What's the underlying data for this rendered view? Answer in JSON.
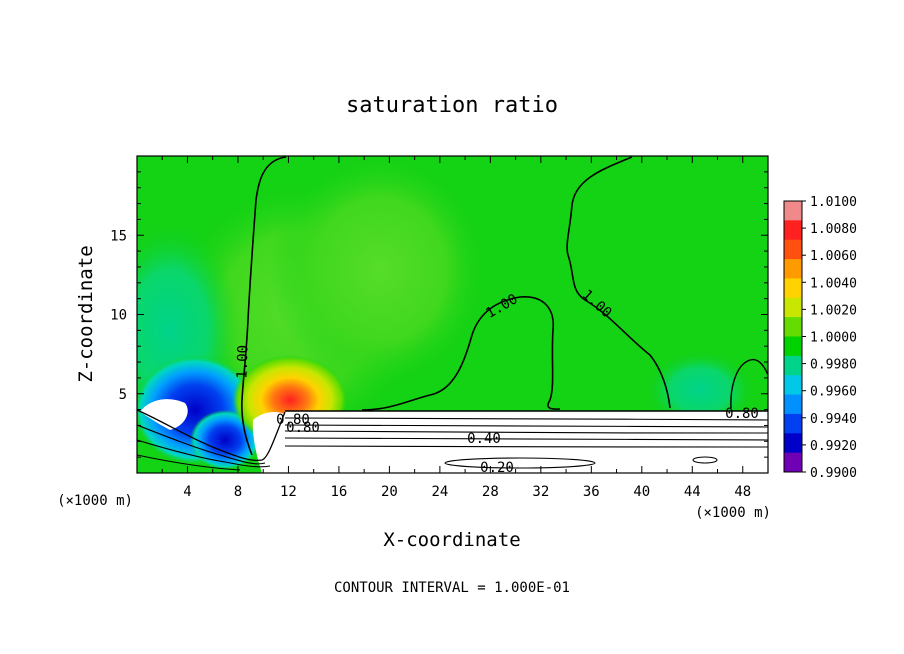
{
  "chart_data": {
    "type": "heatmap",
    "title": "saturation ratio",
    "xlabel": "X-coordinate",
    "ylabel": "Z-coordinate",
    "x_unit_left": "(×1000 m)",
    "x_unit_right": "(×1000 m)",
    "xlim": [
      0,
      50
    ],
    "ylim": [
      0,
      20
    ],
    "x_ticks": [
      "4",
      "8",
      "12",
      "16",
      "20",
      "24",
      "28",
      "32",
      "36",
      "40",
      "44",
      "48"
    ],
    "y_ticks": [
      "5",
      "10",
      "15"
    ],
    "colorbar": {
      "labels": [
        "1.0100",
        "1.0080",
        "1.0060",
        "1.0040",
        "1.0020",
        "1.0000",
        "0.9980",
        "0.9960",
        "0.9940",
        "0.9920",
        "0.9900"
      ],
      "colors": [
        "#f08a8a",
        "#ff2020",
        "#ff5010",
        "#ff9a00",
        "#ffd200",
        "#c8e600",
        "#64dc00",
        "#00d200",
        "#00d48a",
        "#00c8e6",
        "#0090ff",
        "#0040f0",
        "#0000c8",
        "#7000b4"
      ]
    },
    "background_color": "#14d214",
    "contour_labels": [
      "1.00",
      "1.00",
      "1.00",
      "0.80",
      "0.80",
      "0.80",
      "0.40",
      "0.20"
    ],
    "footer": "CONTOUR INTERVAL = 1.000E-01"
  }
}
